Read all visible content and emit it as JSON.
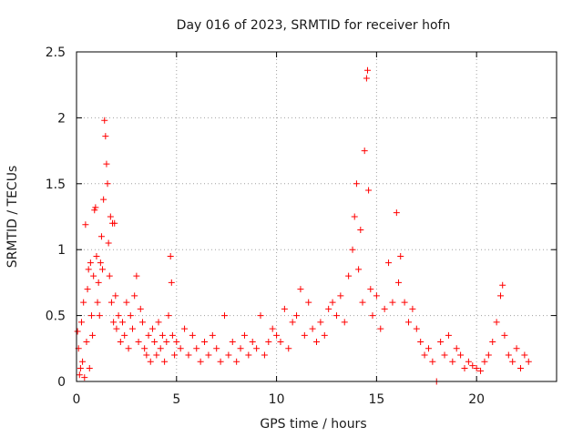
{
  "chart_data": {
    "type": "scatter",
    "title": "Day 016 of 2023, SRMTID for receiver hofn",
    "xlabel": "GPS time / hours",
    "ylabel": "SRMTID / TECUs",
    "xlim": [
      0,
      24
    ],
    "ylim": [
      0,
      2.5
    ],
    "x_ticks": [
      0,
      5,
      10,
      15,
      20
    ],
    "x_tick_labels": [
      "0",
      "5",
      "10",
      "15",
      "20"
    ],
    "y_ticks": [
      0,
      0.5,
      1,
      1.5,
      2,
      2.5
    ],
    "y_tick_labels": [
      "0",
      "0.5",
      "1",
      "1.5",
      "2",
      "2.5"
    ],
    "grid": true,
    "marker": "plus",
    "series": [
      {
        "name": "SRMTID",
        "color": "#ff0000",
        "points": [
          [
            0.05,
            0.38
          ],
          [
            0.1,
            0.25
          ],
          [
            0.15,
            0.05
          ],
          [
            0.2,
            0.1
          ],
          [
            0.25,
            0.45
          ],
          [
            0.3,
            0.15
          ],
          [
            0.35,
            0.6
          ],
          [
            0.4,
            0.03
          ],
          [
            0.45,
            1.19
          ],
          [
            0.5,
            0.3
          ],
          [
            0.55,
            0.7
          ],
          [
            0.6,
            0.85
          ],
          [
            0.65,
            0.1
          ],
          [
            0.7,
            0.9
          ],
          [
            0.75,
            0.5
          ],
          [
            0.8,
            0.35
          ],
          [
            0.85,
            0.8
          ],
          [
            0.9,
            1.3
          ],
          [
            0.95,
            1.32
          ],
          [
            1.0,
            0.95
          ],
          [
            1.05,
            0.6
          ],
          [
            1.1,
            0.75
          ],
          [
            1.15,
            0.5
          ],
          [
            1.2,
            0.9
          ],
          [
            1.25,
            1.1
          ],
          [
            1.3,
            0.85
          ],
          [
            1.35,
            1.38
          ],
          [
            1.4,
            1.98
          ],
          [
            1.45,
            1.86
          ],
          [
            1.5,
            1.65
          ],
          [
            1.55,
            1.5
          ],
          [
            1.6,
            1.05
          ],
          [
            1.65,
            0.8
          ],
          [
            1.7,
            1.25
          ],
          [
            1.75,
            0.6
          ],
          [
            1.8,
            1.2
          ],
          [
            1.85,
            0.45
          ],
          [
            1.9,
            1.2
          ],
          [
            1.95,
            0.65
          ],
          [
            2.0,
            0.4
          ],
          [
            2.1,
            0.5
          ],
          [
            2.2,
            0.3
          ],
          [
            2.3,
            0.45
          ],
          [
            2.4,
            0.35
          ],
          [
            2.5,
            0.6
          ],
          [
            2.6,
            0.25
          ],
          [
            2.7,
            0.5
          ],
          [
            2.8,
            0.4
          ],
          [
            2.9,
            0.65
          ],
          [
            3.0,
            0.8
          ],
          [
            3.1,
            0.3
          ],
          [
            3.2,
            0.55
          ],
          [
            3.3,
            0.45
          ],
          [
            3.4,
            0.25
          ],
          [
            3.5,
            0.2
          ],
          [
            3.6,
            0.35
          ],
          [
            3.7,
            0.15
          ],
          [
            3.8,
            0.4
          ],
          [
            3.9,
            0.3
          ],
          [
            4.0,
            0.2
          ],
          [
            4.1,
            0.45
          ],
          [
            4.2,
            0.25
          ],
          [
            4.3,
            0.35
          ],
          [
            4.4,
            0.15
          ],
          [
            4.5,
            0.3
          ],
          [
            4.6,
            0.5
          ],
          [
            4.7,
            0.95
          ],
          [
            4.75,
            0.75
          ],
          [
            4.8,
            0.35
          ],
          [
            4.9,
            0.2
          ],
          [
            5.0,
            0.3
          ],
          [
            5.2,
            0.25
          ],
          [
            5.4,
            0.4
          ],
          [
            5.6,
            0.2
          ],
          [
            5.8,
            0.35
          ],
          [
            6.0,
            0.25
          ],
          [
            6.2,
            0.15
          ],
          [
            6.4,
            0.3
          ],
          [
            6.6,
            0.2
          ],
          [
            6.8,
            0.35
          ],
          [
            7.0,
            0.25
          ],
          [
            7.2,
            0.15
          ],
          [
            7.4,
            0.5
          ],
          [
            7.6,
            0.2
          ],
          [
            7.8,
            0.3
          ],
          [
            8.0,
            0.15
          ],
          [
            8.2,
            0.25
          ],
          [
            8.4,
            0.35
          ],
          [
            8.6,
            0.2
          ],
          [
            8.8,
            0.3
          ],
          [
            9.0,
            0.25
          ],
          [
            9.2,
            0.5
          ],
          [
            9.4,
            0.2
          ],
          [
            9.6,
            0.3
          ],
          [
            9.8,
            0.4
          ],
          [
            10.0,
            0.35
          ],
          [
            10.2,
            0.3
          ],
          [
            10.4,
            0.55
          ],
          [
            10.6,
            0.25
          ],
          [
            10.8,
            0.45
          ],
          [
            11.0,
            0.5
          ],
          [
            11.2,
            0.7
          ],
          [
            11.4,
            0.35
          ],
          [
            11.6,
            0.6
          ],
          [
            11.8,
            0.4
          ],
          [
            12.0,
            0.3
          ],
          [
            12.2,
            0.45
          ],
          [
            12.4,
            0.35
          ],
          [
            12.6,
            0.55
          ],
          [
            12.8,
            0.6
          ],
          [
            13.0,
            0.5
          ],
          [
            13.2,
            0.65
          ],
          [
            13.4,
            0.45
          ],
          [
            13.6,
            0.8
          ],
          [
            13.8,
            1.0
          ],
          [
            13.9,
            1.25
          ],
          [
            14.0,
            1.5
          ],
          [
            14.1,
            0.85
          ],
          [
            14.2,
            1.15
          ],
          [
            14.3,
            0.6
          ],
          [
            14.4,
            1.75
          ],
          [
            14.5,
            2.3
          ],
          [
            14.55,
            2.36
          ],
          [
            14.6,
            1.45
          ],
          [
            14.7,
            0.7
          ],
          [
            14.8,
            0.5
          ],
          [
            15.0,
            0.65
          ],
          [
            15.2,
            0.4
          ],
          [
            15.4,
            0.55
          ],
          [
            15.6,
            0.9
          ],
          [
            15.8,
            0.6
          ],
          [
            16.0,
            1.28
          ],
          [
            16.1,
            0.75
          ],
          [
            16.2,
            0.95
          ],
          [
            16.4,
            0.6
          ],
          [
            16.6,
            0.45
          ],
          [
            16.8,
            0.55
          ],
          [
            17.0,
            0.4
          ],
          [
            17.2,
            0.3
          ],
          [
            17.4,
            0.2
          ],
          [
            17.6,
            0.25
          ],
          [
            17.8,
            0.15
          ],
          [
            18.0,
            0.0
          ],
          [
            18.2,
            0.3
          ],
          [
            18.4,
            0.2
          ],
          [
            18.6,
            0.35
          ],
          [
            18.8,
            0.15
          ],
          [
            19.0,
            0.25
          ],
          [
            19.2,
            0.2
          ],
          [
            19.4,
            0.1
          ],
          [
            19.6,
            0.15
          ],
          [
            19.8,
            0.12
          ],
          [
            20.0,
            0.1
          ],
          [
            20.2,
            0.08
          ],
          [
            20.4,
            0.15
          ],
          [
            20.6,
            0.2
          ],
          [
            20.8,
            0.3
          ],
          [
            21.0,
            0.45
          ],
          [
            21.2,
            0.65
          ],
          [
            21.3,
            0.73
          ],
          [
            21.4,
            0.35
          ],
          [
            21.6,
            0.2
          ],
          [
            21.8,
            0.15
          ],
          [
            22.0,
            0.25
          ],
          [
            22.2,
            0.1
          ],
          [
            22.4,
            0.2
          ],
          [
            22.6,
            0.15
          ]
        ]
      }
    ]
  }
}
